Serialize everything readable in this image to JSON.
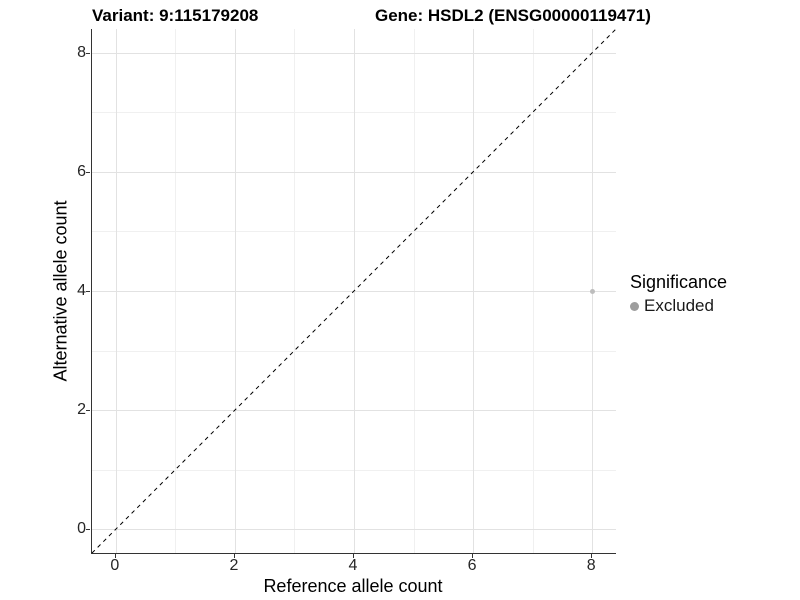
{
  "header": {
    "variant_title": "Variant: 9:115179208",
    "gene_title": "Gene: HSDL2 (ENSG00000119471)"
  },
  "chart_data": {
    "type": "scatter",
    "xlabel": "Reference allele count",
    "ylabel": "Alternative allele count",
    "xlim": [
      -0.4,
      8.4
    ],
    "ylim": [
      -0.4,
      8.4
    ],
    "x_major_ticks": [
      0,
      2,
      4,
      6,
      8
    ],
    "y_major_ticks": [
      0,
      2,
      4,
      6,
      8
    ],
    "x_minor_ticks": [
      1,
      3,
      5,
      7
    ],
    "y_minor_ticks": [
      1,
      3,
      5,
      7
    ],
    "grid": true,
    "points": [
      {
        "x": 8,
        "y": 4,
        "series": "Excluded",
        "color": "#bdbdbd",
        "radius": 2.5
      }
    ],
    "reference_line": {
      "type": "identity",
      "slope": 1,
      "intercept": 0,
      "style": "dashed",
      "color": "#000000"
    },
    "legend": {
      "title": "Significance",
      "position": "right",
      "items": [
        {
          "label": "Excluded",
          "color": "#9e9e9e"
        }
      ]
    },
    "colors": {
      "grid_major": "#e2e2e2",
      "grid_minor": "#f0f0f0",
      "axis_line": "#333333",
      "tick_text": "#262626",
      "title_text": "#000000"
    }
  }
}
